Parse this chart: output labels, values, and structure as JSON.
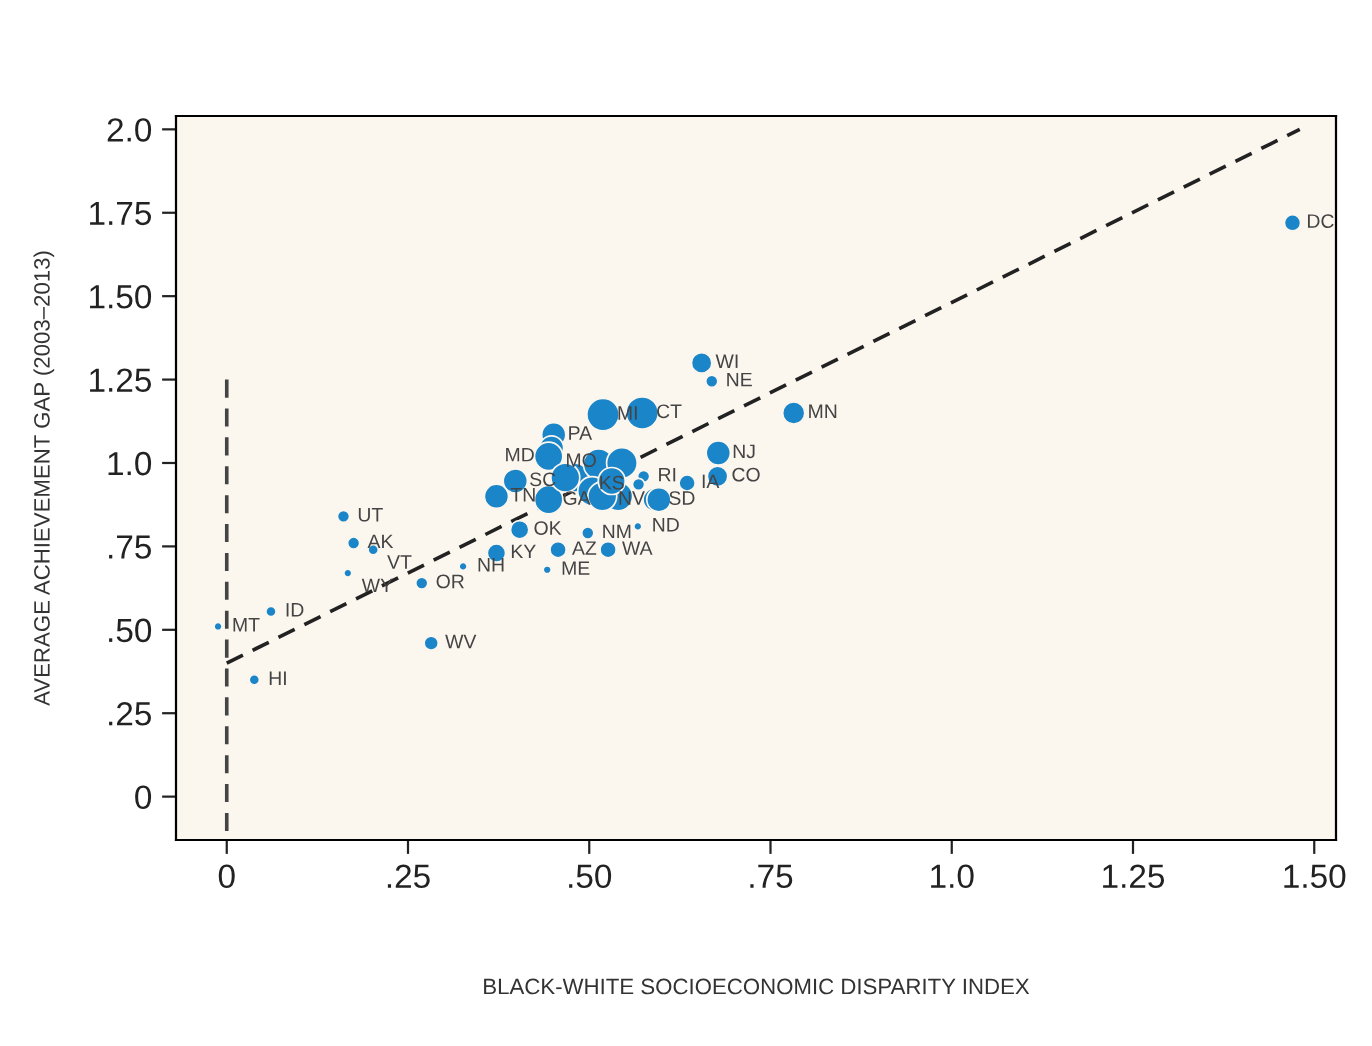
{
  "chart_data": {
    "type": "bubble",
    "xlabel": "BLACK-WHITE SOCIOECONOMIC DISPARITY INDEX",
    "ylabel": "AVERAGE ACHIEVEMENT GAP (2003–2013)",
    "xlim": [
      -0.07,
      1.53
    ],
    "ylim": [
      -0.13,
      2.04
    ],
    "xticks": [
      {
        "value": 0,
        "label": "0"
      },
      {
        "value": 0.25,
        "label": ".25"
      },
      {
        "value": 0.5,
        "label": ".50"
      },
      {
        "value": 0.75,
        "label": ".75"
      },
      {
        "value": 1.0,
        "label": "1.0"
      },
      {
        "value": 1.25,
        "label": "1.25"
      },
      {
        "value": 1.5,
        "label": "1.50"
      }
    ],
    "yticks": [
      {
        "value": 0,
        "label": "0"
      },
      {
        "value": 0.25,
        "label": ".25"
      },
      {
        "value": 0.5,
        "label": ".50"
      },
      {
        "value": 0.75,
        "label": ".75"
      },
      {
        "value": 1.0,
        "label": "1.0"
      },
      {
        "value": 1.25,
        "label": "1.25"
      },
      {
        "value": 1.5,
        "label": "1.50"
      },
      {
        "value": 1.75,
        "label": "1.75"
      },
      {
        "value": 2.0,
        "label": "2.0"
      }
    ],
    "grid": false,
    "legend": false,
    "series": [
      {
        "type": "bubble",
        "color": "#1a85c8",
        "x": [
          1.47,
          0.655,
          0.669,
          0.782,
          0.678,
          0.677,
          0.635,
          0.161,
          0.175,
          0.202,
          0.167,
          0.269,
          0.326,
          0.061,
          -0.012,
          0.038,
          0.282,
          0.372,
          0.404,
          0.498,
          0.457,
          0.526,
          0.442,
          0.567,
          0.59,
          0.596,
          0.575,
          0.568,
          0.519,
          0.573,
          0.451,
          0.448,
          0.444,
          0.398,
          0.372,
          0.444,
          0.48,
          0.513,
          0.545,
          0.504,
          0.54,
          0.467,
          0.518,
          0.531
        ],
        "values": [
          1.72,
          1.3,
          1.245,
          1.15,
          1.03,
          0.96,
          0.94,
          0.84,
          0.76,
          0.74,
          0.67,
          0.64,
          0.69,
          0.555,
          0.51,
          0.35,
          0.46,
          0.73,
          0.8,
          0.79,
          0.74,
          0.74,
          0.68,
          0.81,
          0.89,
          0.89,
          0.96,
          0.936,
          1.145,
          1.15,
          1.085,
          1.045,
          1.02,
          0.946,
          0.9,
          0.89,
          0.956,
          0.996,
          1.0,
          0.916,
          0.9,
          0.956,
          0.9,
          0.946
        ],
        "sizes": [
          0.25,
          0.4,
          0.14,
          0.47,
          0.56,
          0.4,
          0.25,
          0.14,
          0.14,
          0.1,
          0.06,
          0.14,
          0.06,
          0.1,
          0.06,
          0.1,
          0.19,
          0.32,
          0.32,
          0.14,
          0.25,
          0.25,
          0.06,
          0.06,
          0.5,
          0.56,
          0.14,
          0.14,
          1,
          1,
          0.56,
          0.56,
          0.77,
          0.56,
          0.56,
          0.77,
          0.8,
          0.9,
          0.9,
          0.8,
          0.8,
          0.8,
          0.8,
          0.7
        ],
        "value_labels": [
          "DC",
          "WI",
          "NE",
          "MN",
          "NJ",
          "CO",
          "IA",
          "UT",
          "AK",
          "VT",
          "WY",
          "OR",
          "NH",
          "ID",
          "MT",
          "HI",
          "WV",
          "KY",
          "OK",
          "NM",
          "AZ",
          "WA",
          "ME",
          "ND",
          "SD",
          "NV",
          "RI",
          "KS",
          "MI",
          "CT",
          "PA",
          "MO",
          "MD",
          "SC",
          "TN",
          "GA",
          null,
          null,
          null,
          null,
          null,
          null,
          null,
          null
        ]
      },
      {
        "type": "line",
        "color": "#222222",
        "line_style": "dashed",
        "x": [
          0,
          1.48
        ],
        "values": [
          0.4,
          2.0
        ]
      },
      {
        "type": "line",
        "color": "#444444",
        "line_style": "dashed",
        "x": [
          0,
          0
        ],
        "values": [
          1.25,
          -0.13
        ]
      }
    ]
  }
}
